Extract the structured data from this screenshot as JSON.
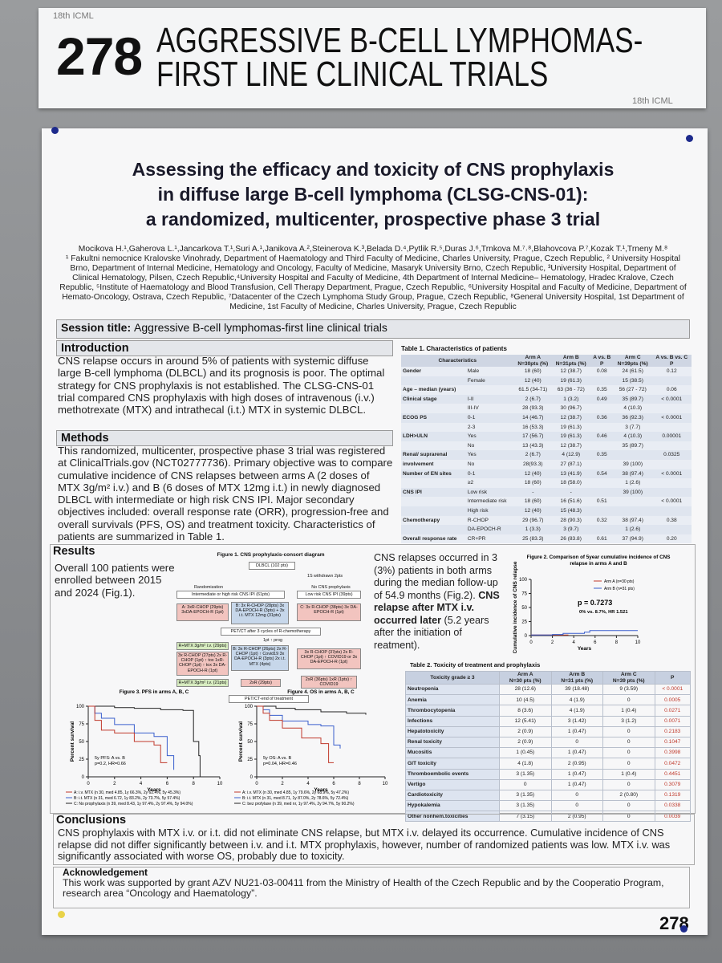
{
  "header": {
    "logo": "18th ICML",
    "number": "278",
    "title_lines": [
      "AGGRESSIVE B-CELL LYMPHOMAS-",
      "FIRST LINE CLINICAL TRIALS"
    ],
    "logo_bottom": "18th ICML"
  },
  "poster": {
    "title_lines": [
      "Assessing the efficacy and toxicity of CNS prophylaxis",
      "in diffuse large B-cell lymphoma (CLSG-CNS-01):",
      "a randomized, multicenter, prospective phase 3 trial"
    ],
    "authors": "Mocikova H.¹,Gaherova L.¹,Jancarkova T.¹,Suri A.¹,Janikova A.²,Steinerova K.³,Belada D.⁴,Pytlik R.⁵,Duras J.⁶,Trnkova M.⁷˒⁸,Blahovcova P.⁷,Kozak T.¹,Trneny M.⁸",
    "affiliations": "¹ Fakultni nemocnice Kralovske Vinohrady, Department of Haematology and Third Faculty of Medicine, Charles University, Prague, Czech Republic, ² University Hospital Brno, Department of Internal Medicine, Hematology and Oncology, Faculty of Medicine, Masaryk University Brno, Czech Republic, ³University Hospital, Department of Clinical Hematology, Pilsen, Czech Republic,⁴University Hospital and Faculty of Medicine, 4th Department of Internal Medicine– Hematology, Hradec Kralove, Czech Republic, ⁵Institute of Haematology and Blood Transfusion, Cell Therapy Department, Prague, Czech Republic, ⁶University Hospital and Faculty of Medicine, Department of Hemato-Oncology, Ostrava, Czech Republic, ⁷Datacenter of the Czech Lymphoma Study Group, Prague, Czech Republic, ⁸General University Hospital, 1st Department of Medicine, 1st Faculty of Medicine, Charles University, Prague, Czech Republic",
    "session_label": "Session title:",
    "session_title": "Aggressive B-cell lymphomas-first line clinical trials",
    "introduction": {
      "heading": "Introduction",
      "text": "CNS relapse occurs in around 5% of patients with systemic diffuse large B-cell lymphoma (DLBCL) and its prognosis is poor. The optimal strategy for CNS prophylaxis is not established. The CLSG-CNS-01 trial compared CNS prophylaxis with high doses of intravenous (i.v.) methotrexate (MTX) and intrathecal (i.t.) MTX in systemic DLBCL."
    },
    "methods": {
      "heading": "Methods",
      "text": "This randomized, multicenter, prospective phase 3 trial was registered at ClinicalTrials.gov (NCT02777736). Primary objective was to compare cumulative incidence of CNS relapses between arms A (2 doses of MTX 3g/m² i.v.) and B (6 doses of MTX 12mg i.t.) in newly diagnosed DLBCL with intermediate or high risk CNS IPI. Major secondary objectives included: overall response rate (ORR), progression-free and overall survivals (PFS, OS) and treatment toxicity. Characteristics of patients are summarized in Table 1."
    },
    "results": {
      "heading": "Results",
      "text": "Overall 100 patients were enrolled between 2015 and 2024 (Fig.1).",
      "relapse_text": "CNS relapses occurred in 3 (3%) patients in both arms during the median follow-up of 54.9 months (Fig.2).",
      "relapse_bold": "CNS relapse after MTX i.v. occurred later",
      "relapse_tail": "(5.2 years after the initiation of reatment)."
    },
    "table1": {
      "title": "Table 1. Characteristics of patients",
      "header": [
        "Characteristics",
        "Arm A\nN=30pts (%)",
        "Arm B\nN=31pts (%)",
        "A vs. B\nP",
        "Arm C\nN=39pts (%)",
        "A vs. B vs. C\nP"
      ],
      "rows": [
        [
          "Gender",
          "Male",
          "18 (60)",
          "12 (38.7)",
          "0.08",
          "24 (61.5)",
          "0.12"
        ],
        [
          null,
          "Female",
          "12 (40)",
          "19 (61.3)",
          null,
          "15 (38.5)",
          null
        ],
        [
          "Age – median (years)",
          null,
          "61.5 (34-71)",
          "63 (36 - 72)",
          "0.35",
          "56 (27 - 72)",
          "0.06"
        ],
        [
          "Clinical stage",
          "I-II",
          "2 (6.7)",
          "1 (3.2)",
          "0.49",
          "35 (89.7)",
          "< 0.0001"
        ],
        [
          null,
          "III-IV",
          "28 (93.3)",
          "30 (96.7)",
          null,
          "4 (10.3)",
          null
        ],
        [
          "ECOG PS",
          "0-1",
          "14 (46.7)",
          "12 (38.7)",
          "0.36",
          "36 (92.3)",
          "< 0.0001"
        ],
        [
          null,
          "2-3",
          "16 (53.3)",
          "19 (61.3)",
          null,
          "3 (7.7)",
          null
        ],
        [
          "LDH>ULN",
          "Yes",
          "17 (56.7)",
          "19 (61.3)",
          "0.46",
          "4 (10.3)",
          "0.00001"
        ],
        [
          null,
          "No",
          "13 (43.3)",
          "12 (38.7)",
          null,
          "35 (89.7)",
          null
        ],
        [
          "Renal/ suprarenal",
          "Yes",
          "2 (6.7)",
          "4 (12.9)",
          "0.35",
          null,
          "0.0325"
        ],
        [
          "involvement",
          "No",
          "28(93.3)",
          "27 (87.1)",
          null,
          "39 (100)",
          null
        ],
        [
          "Number of EN sites",
          "0-1",
          "12 (40)",
          "13 (41.9)",
          "0.54",
          "38 (97.4)",
          "< 0.0001"
        ],
        [
          null,
          "≥2",
          "18 (60)",
          "18 (58.0)",
          null,
          "1 (2.6)",
          null
        ],
        [
          "CNS IPI",
          "Low risk",
          "-",
          "-",
          null,
          "39 (100)",
          null
        ],
        [
          null,
          "Intermediate risk",
          "18 (60)",
          "16 (51.6)",
          "0.51",
          null,
          "< 0.0001"
        ],
        [
          null,
          "High risk",
          "12 (40)",
          "15 (48.3)",
          null,
          null,
          null
        ],
        [
          "Chemotherapy",
          "R-CHOP",
          "29 (96.7)",
          "28 (90.3)",
          "0.32",
          "38 (97.4)",
          "0.38"
        ],
        [
          null,
          "DA-EPOCH-R",
          "1 (3.3)",
          "3 (9.7)",
          null,
          "1 (2.6)",
          null
        ],
        [
          "Overall response rate",
          "CR+PR",
          "25 (83.3)",
          "26 (83.8)",
          "0.61",
          "37 (94.9)",
          "0.20"
        ]
      ]
    },
    "table2": {
      "title": "Table 2. Toxicity of treatment and prophylaxis",
      "header": [
        "Toxicity grade ≥ 3",
        "Arm A\nN=30 pts (%)",
        "Arm B\nN=31 pts (%)",
        "Arm C\nN=39 pts (%)",
        "P"
      ],
      "rows": [
        [
          "Neutropenia",
          "28 (12.6)",
          "39 (18.48)",
          "9 (3.59)",
          "< 0.0001"
        ],
        [
          "Anemia",
          "10 (4.5)",
          "4 (1.9)",
          "0",
          "0.0005"
        ],
        [
          "Thrombocytopenia",
          "8 (3.6)",
          "4 (1.9)",
          "1 (0.4)",
          "0.0271"
        ],
        [
          "Infections",
          "12 (5.41)",
          "3 (1.42)",
          "3 (1.2)",
          "0.0071"
        ],
        [
          "Hepatotoxicity",
          "2 (0.9)",
          "1 (0.47)",
          "0",
          "0.2183"
        ],
        [
          "Renal toxicity",
          "2 (0.9)",
          "0",
          "0",
          "0.1047"
        ],
        [
          "Mucositis",
          "1 (0.45)",
          "1 (0.47)",
          "0",
          "0.3998"
        ],
        [
          "GIT toxicity",
          "4 (1.8)",
          "2 (0.95)",
          "0",
          "0.0472"
        ],
        [
          "Thromboembolic events",
          "3 (1.35)",
          "1 (0.47)",
          "1 (0.4)",
          "0.4451"
        ],
        [
          "Vertigo",
          "0",
          "1 (0.47)",
          "0",
          "0.3079"
        ],
        [
          "Cardiotoxicity",
          "3 (1.35)",
          "0",
          "2 (0.80)",
          "0.1319"
        ],
        [
          "Hypokalemia",
          "3 (1.35)",
          "0",
          "0",
          "0.0338"
        ],
        [
          "Other nonhem.toxicities",
          "7 (3.15)",
          "2 (0.95)",
          "0",
          "0.0039"
        ]
      ]
    },
    "figure1": {
      "title": "Figure 1. CNS prophylaxis-consort diagram",
      "boxes": [
        "DLBCL (102 pts)",
        "1S withdrawn 2pts",
        "Randomization",
        "No CNS prophylaxis",
        "Intermediate or high risk CNS IPI (61pts)",
        "Low risk CNS IPI (39pts)",
        "A: 3xR-CHOP (29pts) 3xDA-EPOCH-R (1pt)",
        "B: 3x R-CHOP (28pts) 3x DA-EPOCH-R (3pts) + 3x i.t. MTX 12mg (31pts)",
        "C: 3x R-CHOP (38pts) 3x DA-EPOCH-R (1pt)",
        "PET/CT after 3 cycles of R-chemotherapy",
        "1pt ↑ prog",
        "R+MTX 3g/m² i.v. (29pts)",
        "3x R-CHOP (27pts) 2x R-CHOP (1pt) ↑ tox 1xR-CHOP (1pt) ↑ tox 3x DA-EPOCH-R (1pt)",
        "B: 3x R-CHOP (26pts) 2x R-CHOP (1pt) ↑ Covid19 3x DA-EPOCH-R (3pts) 2x i.t. MTX (4pts)",
        "3x R-CHOP (37pts) 2x R-CHOP (1pt) ↑ COVID19 or 3x DA-EPOCH-R (1pt)",
        "R+MTX 3g/m² i.v. (21pts)",
        "2xR (29pts)",
        "2xR (36pts) 1xR (1pts) ↑ COVID19",
        "PET/CT-end of treatment"
      ]
    },
    "figure2": {
      "title_lines": [
        "Figure 2. Comparison of 5year cumulative incidence of CNS",
        "relapse in arms A and B"
      ],
      "ylabel": "Cumulative incidence of CNS relapse",
      "xlabel": "Years",
      "yticks": [
        0,
        25,
        50,
        75,
        100
      ],
      "xticks": [
        0,
        2,
        4,
        6,
        8,
        10
      ],
      "legend": [
        "Arm A (n=30 pts)",
        "Arm B (n=31 pts)"
      ],
      "p_value": "p = 0.7273",
      "note": "0% vs. 8.7%, HR 1.521"
    },
    "figure3": {
      "title": "Figure 3. PFS in arms A, B, C",
      "ylabel": "Percent survival",
      "xlabel": "Years",
      "yticks": [
        0,
        25,
        50,
        75,
        100
      ],
      "xticks": [
        0,
        2,
        4,
        6,
        8,
        10
      ],
      "annotation_lines": [
        "5y PFS: A vs. B",
        "p=0.2, HR=0.66"
      ],
      "legend": [
        "A: i.v. MTX (n 30, med 4.85, 1y 66.3%, 2y 62.4%, 5y 45.3%)",
        "B: i.t. MTX (n 31, med 6.72, 1y 83.2%, 2y 73.7%, 5y 57.4%)",
        "C: No prophylaxis (n 39, med 8.43, 1y 97.4%, 2y 97.4%, 5y 94.0%)"
      ]
    },
    "figure4": {
      "title": "Figure 4. OS in arms A, B, C",
      "ylabel": "Percent survival",
      "xlabel": "Years",
      "yticks": [
        0,
        25,
        50,
        75,
        100
      ],
      "xticks": [
        0,
        2,
        4,
        6,
        8,
        10
      ],
      "annotation_lines": [
        "5y OS: A vs. B",
        "p=0.04, HR=0.46"
      ],
      "legend": [
        "A: i.v. MTX (n 30, med 4.85, 1y 79.6%, 2y 68.9%, 5y 47.2%)",
        "B: i.t. MTX (n 31, med 8.71, 1y 87.0%, 2y 78.6%, 5y 72.4%)",
        "C: bez profylaxe (n 39, med nr, 1y 97.4%, 2y 94.7%, 5y 90.2%)"
      ]
    },
    "conclusions": {
      "heading": "Conclusions",
      "text": "CNS prophylaxis with MTX i.v. or i.t. did not eliminate CNS relapse, but MTX i.v. delayed its occurrence. Cumulative incidence of CNS relapse did not differ significantly between i.v. and i.t. MTX prophylaxis, however, number of randomized patients was low. MTX i.v. was significantly associated with worse OS, probably due to toxicity."
    },
    "acknowledgement": {
      "heading": "Acknowledgement",
      "text": "This work was supported by grant AZV NU21-03-00411 from the Ministry of Health of the Czech Republic and by the Cooperatio Program, research area “Oncology and Haematology”."
    },
    "poster_number": "278"
  }
}
